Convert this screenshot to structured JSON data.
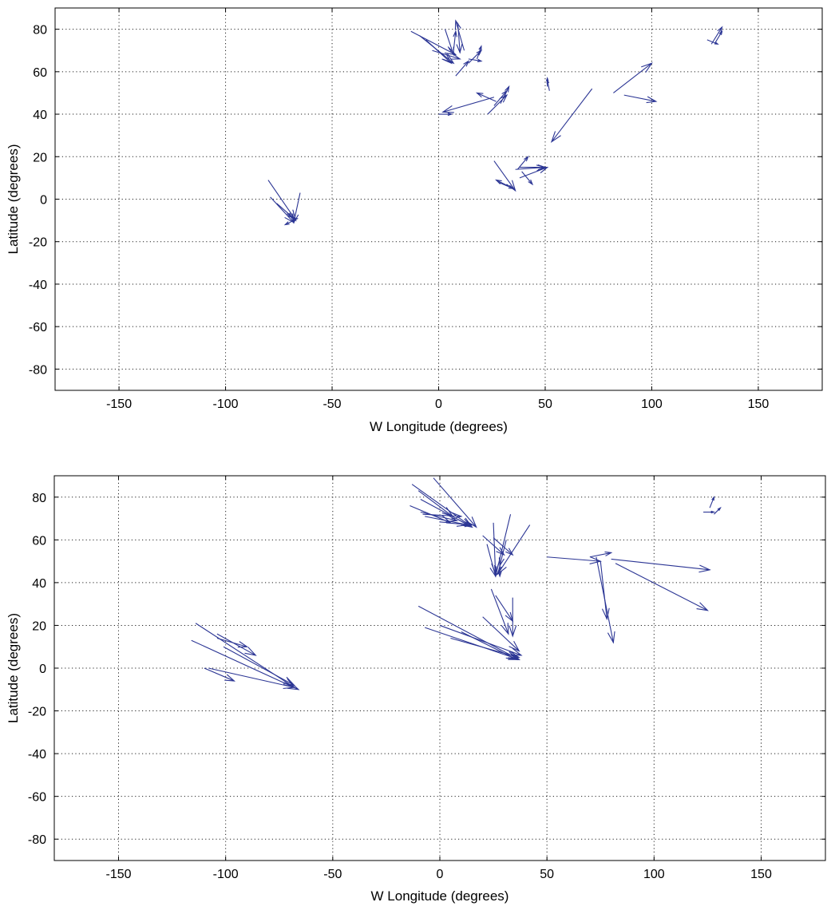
{
  "chart_data": [
    {
      "type": "quiver",
      "xlabel": "W Longitude (degrees)",
      "ylabel": "Latitude (degrees)",
      "xlim": [
        -180,
        180
      ],
      "ylim": [
        -90,
        90
      ],
      "xticks": [
        -150,
        -100,
        -50,
        0,
        50,
        100,
        150
      ],
      "yticks": [
        80,
        60,
        40,
        20,
        0,
        -20,
        -40,
        -60,
        -80
      ],
      "grid": true,
      "color": "#2b3594",
      "arrows": [
        {
          "x": -80,
          "y": 9,
          "u": 13,
          "v": -19
        },
        {
          "x": -79,
          "y": 1,
          "u": 11,
          "v": -12
        },
        {
          "x": -76,
          "y": -2,
          "u": 8,
          "v": -7
        },
        {
          "x": -65,
          "y": 3,
          "u": -3,
          "v": -14
        },
        {
          "x": -66,
          "y": -9,
          "u": -6,
          "v": -3
        },
        {
          "x": -13,
          "y": 79,
          "u": 21,
          "v": -11
        },
        {
          "x": -9,
          "y": 77,
          "u": 16,
          "v": -13
        },
        {
          "x": -6,
          "y": 75,
          "u": 12,
          "v": -11
        },
        {
          "x": -3,
          "y": 70,
          "u": 13,
          "v": -4
        },
        {
          "x": 3,
          "y": 80,
          "u": 4,
          "v": -12
        },
        {
          "x": 9,
          "y": 83,
          "u": 1,
          "v": -14
        },
        {
          "x": 7,
          "y": 70,
          "u": 1,
          "v": 9
        },
        {
          "x": 12,
          "y": 70,
          "u": -4,
          "v": 14
        },
        {
          "x": 8,
          "y": 58,
          "u": 6,
          "v": 7
        },
        {
          "x": 14,
          "y": 66,
          "u": 6,
          "v": -1
        },
        {
          "x": 14,
          "y": 64,
          "u": 6,
          "v": 6
        },
        {
          "x": 18,
          "y": 66,
          "u": 2,
          "v": 6
        },
        {
          "x": 26,
          "y": 48,
          "u": -24,
          "v": -7
        },
        {
          "x": 0,
          "y": 40,
          "u": 6,
          "v": 0
        },
        {
          "x": 23,
          "y": 40,
          "u": 9,
          "v": 9
        },
        {
          "x": 26,
          "y": 44,
          "u": 6,
          "v": 7
        },
        {
          "x": 29,
          "y": 45,
          "u": 4,
          "v": 8
        },
        {
          "x": 27,
          "y": 46,
          "u": -9,
          "v": 4
        },
        {
          "x": 51,
          "y": 53,
          "u": 0,
          "v": 4
        },
        {
          "x": 52,
          "y": 51,
          "u": -1,
          "v": 5
        },
        {
          "x": 72,
          "y": 52,
          "u": -19,
          "v": -25
        },
        {
          "x": 82,
          "y": 50,
          "u": 18,
          "v": 14
        },
        {
          "x": 87,
          "y": 49,
          "u": 15,
          "v": -3
        },
        {
          "x": 128,
          "y": 73,
          "u": 5,
          "v": 8
        },
        {
          "x": 126,
          "y": 75,
          "u": 5,
          "v": -2
        },
        {
          "x": 130,
          "y": 74,
          "u": 3,
          "v": 5
        },
        {
          "x": 26,
          "y": 18,
          "u": 10,
          "v": -14
        },
        {
          "x": 28,
          "y": 8,
          "u": 7,
          "v": -3
        },
        {
          "x": 35,
          "y": 5,
          "u": -8,
          "v": 4
        },
        {
          "x": 36,
          "y": 14,
          "u": 14,
          "v": 1
        },
        {
          "x": 38,
          "y": 15,
          "u": 12,
          "v": 0
        },
        {
          "x": 37,
          "y": 14,
          "u": 5,
          "v": 6
        },
        {
          "x": 39,
          "y": 13,
          "u": 5,
          "v": -6
        },
        {
          "x": 38,
          "y": 10,
          "u": 13,
          "v": 5
        }
      ]
    },
    {
      "type": "quiver",
      "xlabel": "W Longitude (degrees)",
      "ylabel": "Latitude (degrees)",
      "xlim": [
        -180,
        180
      ],
      "ylim": [
        -90,
        90
      ],
      "xticks": [
        -150,
        -100,
        -50,
        0,
        50,
        100,
        150
      ],
      "yticks": [
        80,
        60,
        40,
        20,
        0,
        -20,
        -40,
        -60,
        -80
      ],
      "grid": true,
      "color": "#2b3594",
      "arrows": [
        {
          "x": -114,
          "y": 21,
          "u": 46,
          "v": -30
        },
        {
          "x": -116,
          "y": 13,
          "u": 50,
          "v": -23
        },
        {
          "x": -108,
          "y": 0,
          "u": 40,
          "v": -9
        },
        {
          "x": -101,
          "y": 10,
          "u": 33,
          "v": -18
        },
        {
          "x": -104,
          "y": 16,
          "u": 18,
          "v": -10
        },
        {
          "x": -110,
          "y": 0,
          "u": 14,
          "v": -6
        },
        {
          "x": -104,
          "y": 14,
          "u": 14,
          "v": -4
        },
        {
          "x": -13,
          "y": 86,
          "u": 28,
          "v": -20
        },
        {
          "x": -9,
          "y": 79,
          "u": 24,
          "v": -13
        },
        {
          "x": -14,
          "y": 76,
          "u": 19,
          "v": -8
        },
        {
          "x": -3,
          "y": 89,
          "u": 20,
          "v": -23
        },
        {
          "x": -9,
          "y": 73,
          "u": 17,
          "v": -4
        },
        {
          "x": -8,
          "y": 72,
          "u": 18,
          "v": -1
        },
        {
          "x": -7,
          "y": 71,
          "u": 20,
          "v": -4
        },
        {
          "x": 3,
          "y": 68,
          "u": 12,
          "v": -1
        },
        {
          "x": -10,
          "y": 83,
          "u": 16,
          "v": -12
        },
        {
          "x": 22,
          "y": 58,
          "u": 4,
          "v": -15
        },
        {
          "x": 25,
          "y": 68,
          "u": 1,
          "v": -24
        },
        {
          "x": 33,
          "y": 72,
          "u": -7,
          "v": -29
        },
        {
          "x": 42,
          "y": 67,
          "u": -15,
          "v": -23
        },
        {
          "x": 25,
          "y": 61,
          "u": 9,
          "v": -8
        },
        {
          "x": 20,
          "y": 62,
          "u": 10,
          "v": -9
        },
        {
          "x": 31,
          "y": 60,
          "u": -3,
          "v": -12
        },
        {
          "x": 28,
          "y": 52,
          "u": 0,
          "v": -9
        },
        {
          "x": 50,
          "y": 52,
          "u": 25,
          "v": -2
        },
        {
          "x": 70,
          "y": 52,
          "u": 10,
          "v": 2
        },
        {
          "x": 73,
          "y": 52,
          "u": 8,
          "v": -40
        },
        {
          "x": 75,
          "y": 50,
          "u": 3,
          "v": -27
        },
        {
          "x": 82,
          "y": 49,
          "u": 43,
          "v": -22
        },
        {
          "x": 80,
          "y": 51,
          "u": 46,
          "v": -5
        },
        {
          "x": 123,
          "y": 73,
          "u": 5,
          "v": 0
        },
        {
          "x": 126,
          "y": 75,
          "u": 2,
          "v": 5
        },
        {
          "x": 128,
          "y": 72,
          "u": 3,
          "v": 3
        },
        {
          "x": -10,
          "y": 29,
          "u": 47,
          "v": -25
        },
        {
          "x": -7,
          "y": 19,
          "u": 44,
          "v": -15
        },
        {
          "x": 0,
          "y": 20,
          "u": 38,
          "v": -14
        },
        {
          "x": 10,
          "y": 17,
          "u": 26,
          "v": -13
        },
        {
          "x": 20,
          "y": 24,
          "u": 17,
          "v": -16
        },
        {
          "x": 24,
          "y": 37,
          "u": 8,
          "v": -21
        },
        {
          "x": 34,
          "y": 33,
          "u": 0,
          "v": -18
        },
        {
          "x": 26,
          "y": 34,
          "u": 8,
          "v": -12
        },
        {
          "x": 5,
          "y": 14,
          "u": 32,
          "v": -9
        }
      ]
    }
  ]
}
